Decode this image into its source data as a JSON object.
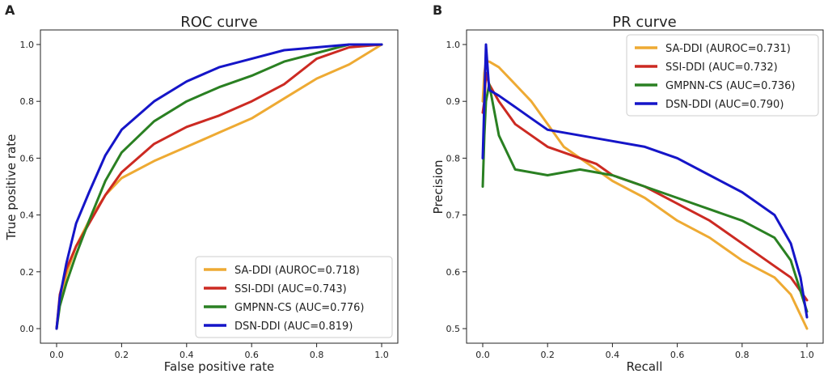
{
  "colors": {
    "SA-DDI": "#eeaa33",
    "SSI-DDI": "#cc2a22",
    "GMPNN-CS": "#2a8022",
    "DSN-DDI": "#1515c8"
  },
  "chart_data": [
    {
      "panel_label": "A",
      "type": "line",
      "title": "ROC curve",
      "xlabel": "False positive rate",
      "ylabel": "True positive rate",
      "xlim": [
        0,
        1
      ],
      "ylim": [
        0,
        1
      ],
      "x_ticks": [
        "0.0",
        "0.2",
        "0.4",
        "0.6",
        "0.8",
        "1.0"
      ],
      "y_ticks": [
        "0.0",
        "0.2",
        "0.4",
        "0.6",
        "0.8",
        "1.0"
      ],
      "grid": false,
      "legend_position": "lower-right",
      "legend": [
        "SA-DDI (AUROC=0.718)",
        "SSI-DDI (AUC=0.743)",
        "GMPNN-CS (AUC=0.776)",
        "DSN-DDI (AUC=0.819)"
      ],
      "series": [
        {
          "name": "SA-DDI",
          "points": [
            [
              0,
              0
            ],
            [
              0.01,
              0.1
            ],
            [
              0.03,
              0.19
            ],
            [
              0.06,
              0.29
            ],
            [
              0.1,
              0.38
            ],
            [
              0.15,
              0.47
            ],
            [
              0.2,
              0.53
            ],
            [
              0.3,
              0.59
            ],
            [
              0.4,
              0.64
            ],
            [
              0.5,
              0.69
            ],
            [
              0.6,
              0.74
            ],
            [
              0.7,
              0.81
            ],
            [
              0.8,
              0.88
            ],
            [
              0.9,
              0.93
            ],
            [
              1.0,
              1.0
            ]
          ]
        },
        {
          "name": "SSI-DDI",
          "points": [
            [
              0,
              0
            ],
            [
              0.01,
              0.12
            ],
            [
              0.03,
              0.21
            ],
            [
              0.06,
              0.29
            ],
            [
              0.1,
              0.37
            ],
            [
              0.15,
              0.47
            ],
            [
              0.2,
              0.55
            ],
            [
              0.3,
              0.65
            ],
            [
              0.4,
              0.71
            ],
            [
              0.5,
              0.75
            ],
            [
              0.6,
              0.8
            ],
            [
              0.7,
              0.86
            ],
            [
              0.8,
              0.95
            ],
            [
              0.9,
              0.99
            ],
            [
              1.0,
              1.0
            ]
          ]
        },
        {
          "name": "GMPNN-CS",
          "points": [
            [
              0,
              0
            ],
            [
              0.01,
              0.08
            ],
            [
              0.03,
              0.16
            ],
            [
              0.06,
              0.26
            ],
            [
              0.1,
              0.38
            ],
            [
              0.15,
              0.52
            ],
            [
              0.2,
              0.62
            ],
            [
              0.3,
              0.73
            ],
            [
              0.4,
              0.8
            ],
            [
              0.5,
              0.85
            ],
            [
              0.6,
              0.89
            ],
            [
              0.7,
              0.94
            ],
            [
              0.8,
              0.97
            ],
            [
              0.9,
              1.0
            ],
            [
              1.0,
              1.0
            ]
          ]
        },
        {
          "name": "DSN-DDI",
          "points": [
            [
              0,
              0
            ],
            [
              0.01,
              0.11
            ],
            [
              0.03,
              0.23
            ],
            [
              0.06,
              0.37
            ],
            [
              0.1,
              0.48
            ],
            [
              0.15,
              0.61
            ],
            [
              0.2,
              0.7
            ],
            [
              0.3,
              0.8
            ],
            [
              0.4,
              0.87
            ],
            [
              0.5,
              0.92
            ],
            [
              0.6,
              0.95
            ],
            [
              0.7,
              0.98
            ],
            [
              0.8,
              0.99
            ],
            [
              0.9,
              1.0
            ],
            [
              1.0,
              1.0
            ]
          ]
        }
      ]
    },
    {
      "panel_label": "B",
      "type": "line",
      "title": "PR curve",
      "xlabel": "Recall",
      "ylabel": "Precision",
      "xlim": [
        0,
        1
      ],
      "ylim": [
        0.5,
        1
      ],
      "x_ticks": [
        "0.0",
        "0.2",
        "0.4",
        "0.6",
        "0.8",
        "1.0"
      ],
      "y_ticks": [
        "0.5",
        "0.6",
        "0.7",
        "0.8",
        "0.9",
        "1.0"
      ],
      "grid": false,
      "legend_position": "top-right",
      "legend": [
        "SA-DDI (AUROC=0.731)",
        "SSI-DDI (AUC=0.732)",
        "GMPNN-CS (AUC=0.736)",
        "DSN-DDI (AUC=0.790)"
      ],
      "series": [
        {
          "name": "SA-DDI",
          "points": [
            [
              0,
              0.9
            ],
            [
              0.005,
              0.95
            ],
            [
              0.01,
              0.97
            ],
            [
              0.02,
              0.97
            ],
            [
              0.05,
              0.96
            ],
            [
              0.1,
              0.93
            ],
            [
              0.15,
              0.9
            ],
            [
              0.2,
              0.86
            ],
            [
              0.25,
              0.82
            ],
            [
              0.3,
              0.8
            ],
            [
              0.35,
              0.78
            ],
            [
              0.4,
              0.76
            ],
            [
              0.5,
              0.73
            ],
            [
              0.6,
              0.69
            ],
            [
              0.7,
              0.66
            ],
            [
              0.8,
              0.62
            ],
            [
              0.9,
              0.59
            ],
            [
              0.95,
              0.56
            ],
            [
              1.0,
              0.5
            ]
          ]
        },
        {
          "name": "SSI-DDI",
          "points": [
            [
              0,
              0.88
            ],
            [
              0.005,
              0.9
            ],
            [
              0.01,
              0.95
            ],
            [
              0.02,
              0.93
            ],
            [
              0.05,
              0.9
            ],
            [
              0.1,
              0.86
            ],
            [
              0.15,
              0.84
            ],
            [
              0.2,
              0.82
            ],
            [
              0.25,
              0.81
            ],
            [
              0.3,
              0.8
            ],
            [
              0.35,
              0.79
            ],
            [
              0.4,
              0.77
            ],
            [
              0.5,
              0.75
            ],
            [
              0.6,
              0.72
            ],
            [
              0.7,
              0.69
            ],
            [
              0.8,
              0.65
            ],
            [
              0.9,
              0.61
            ],
            [
              0.95,
              0.59
            ],
            [
              1.0,
              0.55
            ]
          ]
        },
        {
          "name": "GMPNN-CS",
          "points": [
            [
              0,
              0.75
            ],
            [
              0.005,
              0.84
            ],
            [
              0.01,
              0.9
            ],
            [
              0.02,
              0.93
            ],
            [
              0.03,
              0.9
            ],
            [
              0.05,
              0.84
            ],
            [
              0.1,
              0.78
            ],
            [
              0.2,
              0.77
            ],
            [
              0.3,
              0.78
            ],
            [
              0.4,
              0.77
            ],
            [
              0.5,
              0.75
            ],
            [
              0.6,
              0.73
            ],
            [
              0.7,
              0.71
            ],
            [
              0.8,
              0.69
            ],
            [
              0.9,
              0.66
            ],
            [
              0.95,
              0.62
            ],
            [
              1.0,
              0.53
            ]
          ]
        },
        {
          "name": "DSN-DDI",
          "points": [
            [
              0,
              0.8
            ],
            [
              0.005,
              0.9
            ],
            [
              0.01,
              1.0
            ],
            [
              0.02,
              0.92
            ],
            [
              0.05,
              0.91
            ],
            [
              0.1,
              0.89
            ],
            [
              0.15,
              0.87
            ],
            [
              0.2,
              0.85
            ],
            [
              0.3,
              0.84
            ],
            [
              0.4,
              0.83
            ],
            [
              0.5,
              0.82
            ],
            [
              0.6,
              0.8
            ],
            [
              0.7,
              0.77
            ],
            [
              0.8,
              0.74
            ],
            [
              0.9,
              0.7
            ],
            [
              0.95,
              0.65
            ],
            [
              0.98,
              0.59
            ],
            [
              1.0,
              0.52
            ]
          ]
        }
      ]
    }
  ]
}
